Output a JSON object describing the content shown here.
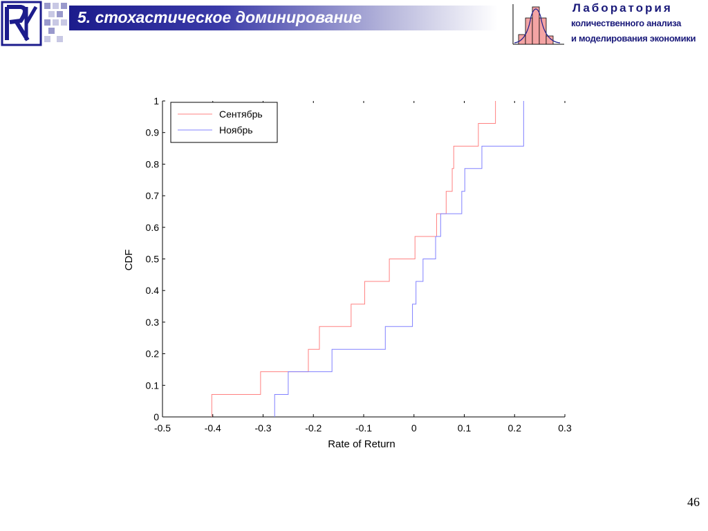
{
  "header": {
    "title": "5. стохастическое доминирование",
    "lab_title": "Лаборатория",
    "lab_line1": "количественного анализа",
    "lab_line2": "и моделирования экономики",
    "logo_icon": "hse-logo-icon",
    "lab_icon": "histogram-icon",
    "colors": {
      "banner": "#1c1c8c",
      "lab_text": "#1a1a7a",
      "histogram_fill": "#f4a4a4"
    }
  },
  "page_number": "46",
  "chart_data": {
    "type": "line",
    "step": true,
    "xlabel": "Rate of Return",
    "ylabel": "CDF",
    "xlim": [
      -0.5,
      0.3
    ],
    "ylim": [
      0,
      1
    ],
    "xticks": [
      -0.5,
      -0.4,
      -0.3,
      -0.2,
      -0.1,
      0,
      0.1,
      0.2,
      0.3
    ],
    "xtick_labels": [
      "-0.5",
      "-0.4",
      "-0.3",
      "-0.2",
      "-0.1",
      "0",
      "0.1",
      "0.2",
      "0.3"
    ],
    "yticks": [
      0,
      0.1,
      0.2,
      0.3,
      0.4,
      0.5,
      0.6,
      0.7,
      0.8,
      0.9,
      1
    ],
    "ytick_labels": [
      "0",
      "0.1",
      "0.2",
      "0.3",
      "0.4",
      "0.5",
      "0.6",
      "0.7",
      "0.8",
      "0.9",
      "1"
    ],
    "legend": {
      "position": "top-left"
    },
    "series": [
      {
        "name": "Сентябрь",
        "color": "#ff8080",
        "x": [
          -0.402,
          -0.305,
          -0.21,
          -0.188,
          -0.125,
          -0.098,
          -0.049,
          0.002,
          0.045,
          0.064,
          0.076,
          0.079,
          0.128,
          0.162
        ],
        "y": [
          0.071,
          0.143,
          0.214,
          0.286,
          0.357,
          0.429,
          0.5,
          0.571,
          0.643,
          0.714,
          0.786,
          0.857,
          0.929,
          1.0
        ]
      },
      {
        "name": "Ноябрь",
        "color": "#8080ff",
        "x": [
          -0.277,
          -0.25,
          -0.163,
          -0.057,
          -0.003,
          0.004,
          0.018,
          0.043,
          0.053,
          0.095,
          0.101,
          0.135,
          0.218
        ],
        "y": [
          0.071,
          0.143,
          0.214,
          0.286,
          0.357,
          0.429,
          0.5,
          0.571,
          0.643,
          0.714,
          0.786,
          0.857,
          1.0
        ]
      }
    ]
  }
}
